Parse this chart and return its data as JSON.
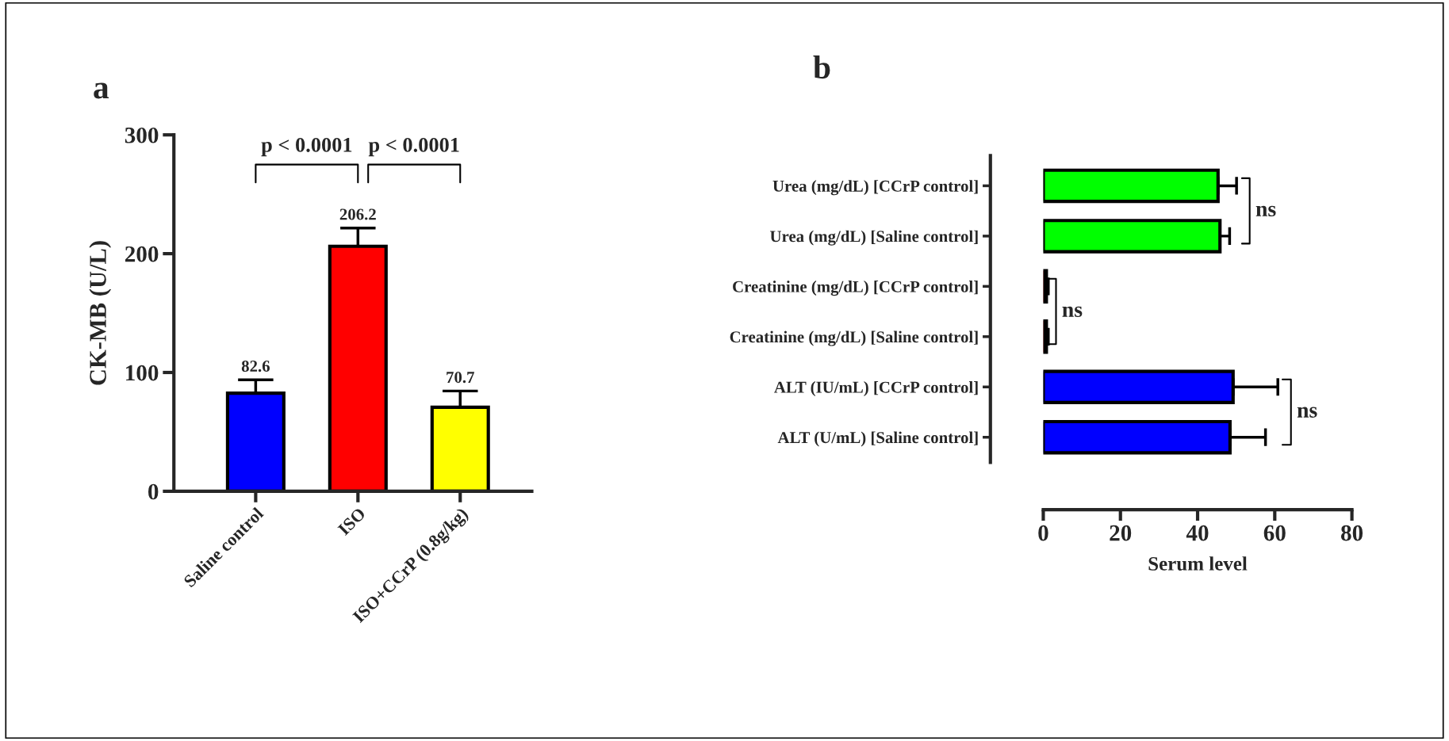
{
  "chart_data": [
    {
      "type": "bar",
      "title": "a",
      "ylabel": "CK-MB (U/L)",
      "categories": [
        "Saline control",
        "ISO",
        "ISO+CCrP (0.8g/kg)"
      ],
      "values": [
        82.6,
        206.2,
        70.7
      ],
      "colors": [
        "#0000ff",
        "#ff0000",
        "#ffff00"
      ],
      "errors": [
        [
          82.6,
          93.8
        ],
        [
          206.2,
          221.6
        ],
        [
          70.7,
          84.4
        ]
      ],
      "data_labels": true,
      "ylim": [
        0,
        300
      ],
      "yticks": [
        0,
        100,
        200,
        300
      ],
      "grid": false,
      "legend": false,
      "annotations": [
        "p < 0.0001",
        "p < 0.0001"
      ]
    },
    {
      "type": "bar",
      "orientation": "horizontal",
      "title": "b",
      "xlabel": "Serum level",
      "categories": [
        "Urea (mg/dL) [CCrP control]",
        "Urea (mg/dL) [Saline control]",
        "Creatinine (mg/dL) [CCrP control]",
        "Creatinine (mg/dL) [Saline control]",
        "ALT (IU/mL) [CCrP control]",
        "ALT (U/mL) [Saline control]"
      ],
      "values": [
        45.3,
        45.8,
        0.8,
        0.8,
        49.2,
        48.4
      ],
      "colors": [
        "#00ff00",
        "#00ff00",
        "#ff0000",
        "#ff0000",
        "#0000ff",
        "#0000ff"
      ],
      "errors": [
        [
          45.3,
          50.1
        ],
        [
          45.8,
          48.3
        ],
        [
          0.8,
          1.3
        ],
        [
          0.8,
          1.3
        ],
        [
          49.2,
          60.8
        ],
        [
          48.4,
          57.6
        ]
      ],
      "xlim": [
        0,
        80
      ],
      "xticks": [
        0,
        20,
        40,
        60,
        80
      ],
      "grid": false,
      "legend": false,
      "annotations": [
        "ns",
        "ns",
        "ns"
      ]
    }
  ]
}
